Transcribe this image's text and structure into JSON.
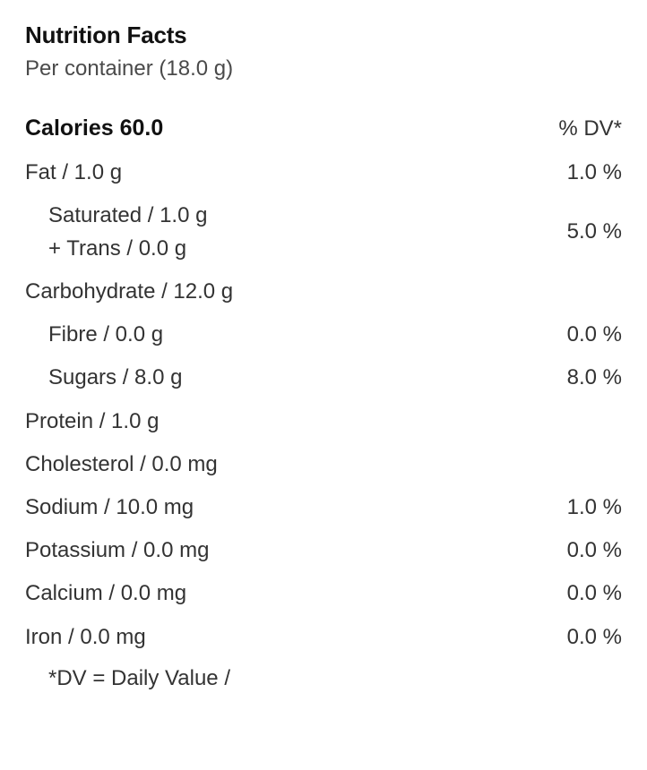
{
  "title": "Nutrition Facts",
  "subtitle": "Per container (18.0 g)",
  "header": {
    "left": "Calories 60.0",
    "right": "% DV*"
  },
  "rows": [
    {
      "left": "Fat / 1.0 g",
      "right": "1.0 %",
      "indent": false
    },
    {
      "leftLines": [
        "Saturated / 1.0 g",
        "+ Trans / 0.0 g"
      ],
      "right": "5.0 %",
      "indent": true
    },
    {
      "left": "Carbohydrate / 12.0 g",
      "right": "",
      "indent": false
    },
    {
      "left": "Fibre / 0.0 g",
      "right": "0.0 %",
      "indent": true
    },
    {
      "left": "Sugars / 8.0 g",
      "right": "8.0 %",
      "indent": true
    },
    {
      "left": "Protein / 1.0 g",
      "right": "",
      "indent": false
    },
    {
      "left": "Cholesterol / 0.0 mg",
      "right": "",
      "indent": false
    },
    {
      "left": "Sodium / 10.0 mg",
      "right": "1.0 %",
      "indent": false
    },
    {
      "left": "Potassium / 0.0 mg",
      "right": "0.0 %",
      "indent": false
    },
    {
      "left": "Calcium / 0.0 mg",
      "right": "0.0 %",
      "indent": false
    },
    {
      "left": "Iron / 0.0 mg",
      "right": "0.0 %",
      "indent": false
    }
  ],
  "footnote": "*DV = Daily Value /"
}
